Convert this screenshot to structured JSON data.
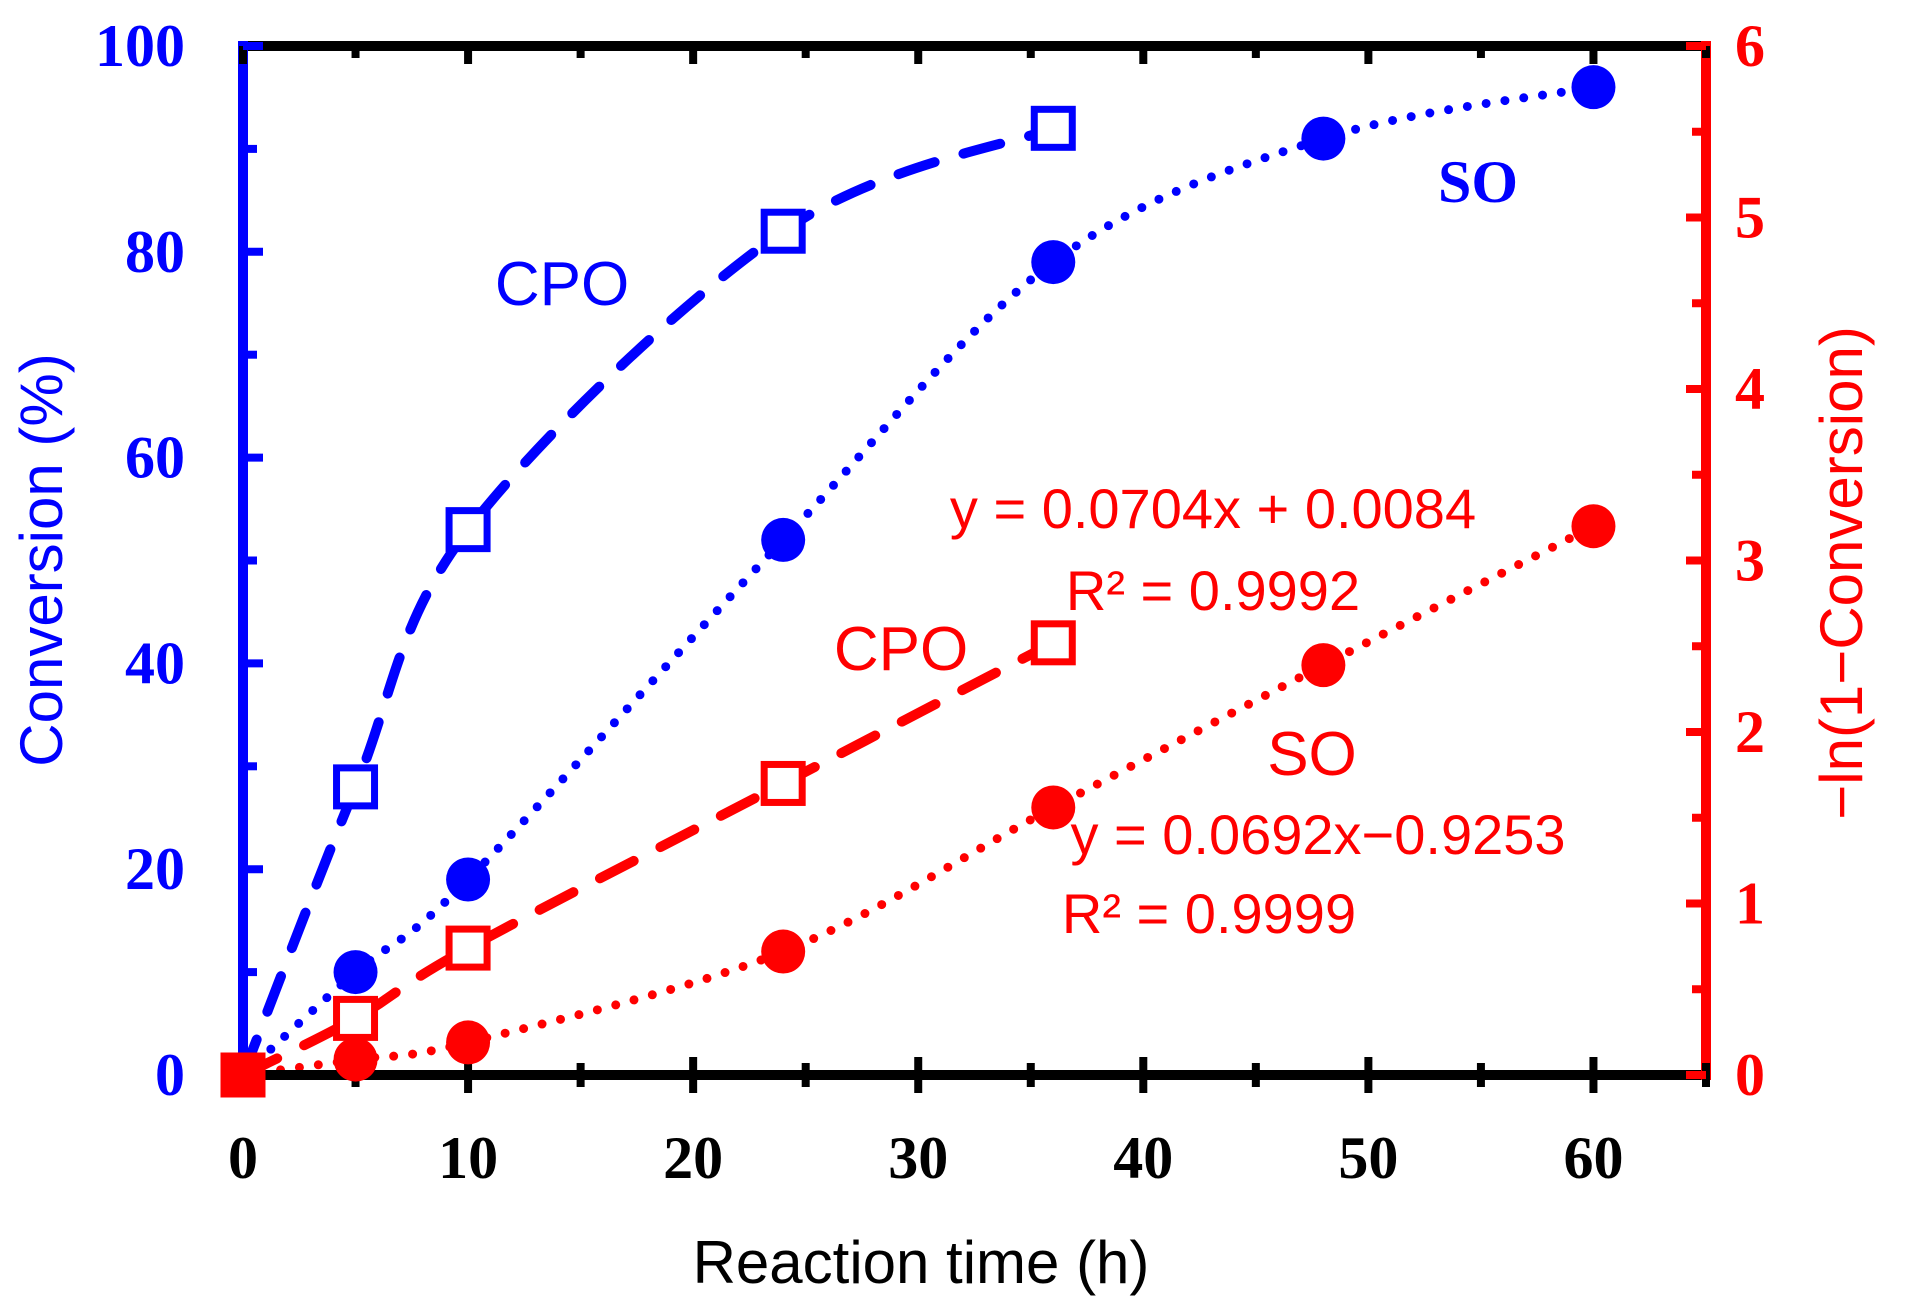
{
  "chart_data": {
    "type": "line",
    "xlabel": "Reaction time (h)",
    "ylabel_left": "Conversion (%)",
    "ylabel_right": "−ln(1−Conversion)",
    "xlim": [
      0,
      65
    ],
    "ylim_left": [
      0,
      100
    ],
    "ylim_right": [
      0,
      6
    ],
    "x_ticks": [
      "0",
      "10",
      "20",
      "30",
      "40",
      "50",
      "60"
    ],
    "y_left_ticks": [
      "0",
      "20",
      "40",
      "60",
      "80",
      "100"
    ],
    "y_right_ticks": [
      "0",
      "1",
      "2",
      "3",
      "4",
      "5",
      "6"
    ],
    "colors": {
      "left": "#0000ff",
      "right": "#ff0000",
      "frame": "#000000"
    },
    "series": [
      {
        "name": "CPO conversion",
        "axis": "left",
        "marker": "square-open",
        "line": "dashed",
        "x": [
          0,
          5,
          10,
          24,
          36
        ],
        "y": [
          0,
          28,
          53,
          82,
          92
        ]
      },
      {
        "name": "SO conversion",
        "axis": "left",
        "marker": "circle",
        "line": "dotted",
        "x": [
          0,
          5,
          10,
          24,
          36,
          48,
          60
        ],
        "y": [
          0,
          10,
          19,
          52,
          79,
          91,
          96
        ]
      },
      {
        "name": "CPO -ln(1-Conversion)",
        "axis": "right",
        "marker": "square-open",
        "line": "dashed",
        "x": [
          0,
          5,
          10,
          24,
          36
        ],
        "y": [
          0,
          0.33,
          0.74,
          1.7,
          2.52
        ]
      },
      {
        "name": "SO -ln(1-Conversion)",
        "axis": "right",
        "marker": "circle",
        "line": "dotted",
        "x": [
          0,
          5,
          10,
          24,
          36,
          48,
          60
        ],
        "y": [
          0,
          0.09,
          0.19,
          0.72,
          1.56,
          2.39,
          3.2
        ]
      }
    ],
    "annotations": {
      "blue_cpo": "CPO",
      "blue_so": "SO",
      "red_cpo": "CPO",
      "red_so": "SO",
      "fit_cpo_eq": "y = 0.0704x + 0.0084",
      "fit_cpo_r2": "R² = 0.9992",
      "fit_so_eq": "y = 0.0692x−0.9253",
      "fit_so_r2": "R² = 0.9999"
    }
  }
}
